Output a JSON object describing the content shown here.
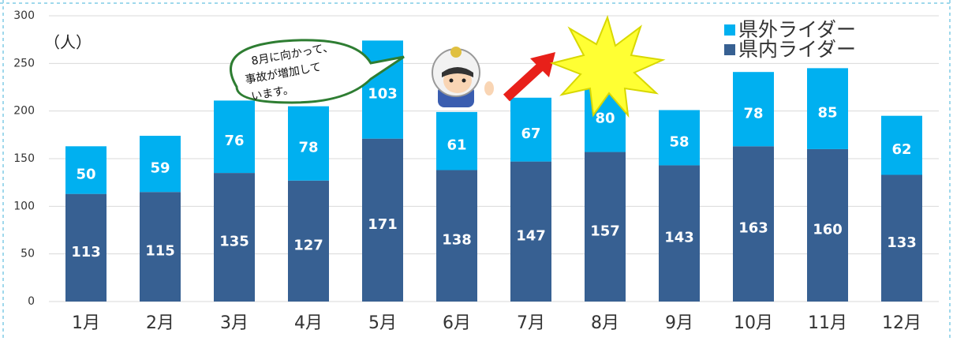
{
  "chart_data": {
    "type": "stacked-bar",
    "y_label": "（人）",
    "categories": [
      "1月",
      "2月",
      "3月",
      "4月",
      "5月",
      "6月",
      "7月",
      "8月",
      "9月",
      "10月",
      "11月",
      "12月"
    ],
    "series": [
      {
        "name": "県内ライダー",
        "color": "#376092",
        "values": [
          113,
          115,
          135,
          127,
          171,
          138,
          147,
          157,
          143,
          163,
          160,
          133
        ]
      },
      {
        "name": "県外ライダー",
        "color": "#00b0f0",
        "values": [
          50,
          59,
          76,
          78,
          103,
          61,
          67,
          80,
          58,
          78,
          85,
          62
        ]
      }
    ],
    "ylim": [
      0,
      300
    ],
    "yticks": [
      0,
      50,
      100,
      150,
      200,
      250,
      300
    ],
    "grid": true,
    "legend": "top-right",
    "annotation": [
      "8月に向かって、",
      "事故が増加して",
      "います。"
    ]
  }
}
